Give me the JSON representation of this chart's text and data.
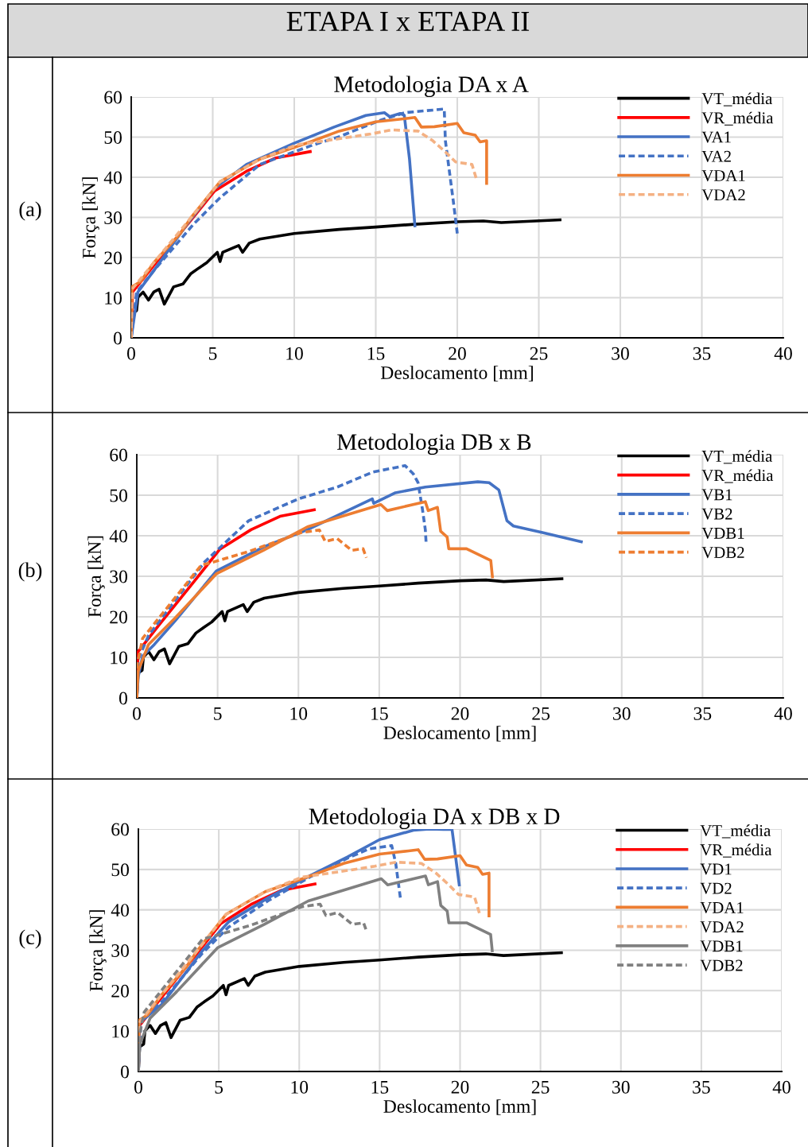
{
  "chart_data": [
    {
      "type": "line",
      "title": "Metodologia DA x A",
      "xlabel": "Deslocamento [mm]",
      "ylabel": "Força [kN]",
      "xlim": [
        0,
        40
      ],
      "ylim": [
        0,
        60
      ],
      "xticks": [
        0,
        5,
        10,
        15,
        20,
        25,
        30,
        35,
        40
      ],
      "yticks": [
        0,
        10,
        20,
        30,
        40,
        50,
        60
      ],
      "grid": true,
      "legend": "top right",
      "annotations": [
        "ETAPA I x ETAPA II",
        "(a)"
      ],
      "series": [
        {
          "name": "VT_média",
          "color": "#000000",
          "line_style": "solid",
          "x": [
            0,
            0.08,
            0.33,
            0.41,
            0.73,
            1.06,
            1.38,
            1.71,
            2.03,
            2.6,
            3.17,
            3.66,
            4.15,
            4.63,
            5.28,
            5.45,
            5.61,
            6.59,
            6.83,
            7.24,
            7.89,
            10.0,
            12.76,
            15.0,
            17.4,
            20.0,
            21.6,
            22.7,
            26.3
          ],
          "values": [
            0,
            6.1,
            6.8,
            10.1,
            11.4,
            9.4,
            11.4,
            12.1,
            8.4,
            12.7,
            13.4,
            16.0,
            17.4,
            18.7,
            21.3,
            19.0,
            21.3,
            23.0,
            21.3,
            23.6,
            24.6,
            26.0,
            27.0,
            27.6,
            28.3,
            28.9,
            29.1,
            28.7,
            29.4
          ]
        },
        {
          "name": "VR_média",
          "color": "#ff0000",
          "line_style": "solid",
          "x": [
            0,
            0.08,
            1.38,
            3.66,
            5.12,
            7.07,
            8.86,
            10.98
          ],
          "values": [
            0,
            11.4,
            18.0,
            29.3,
            36.6,
            41.5,
            44.8,
            46.4
          ]
        },
        {
          "name": "VA1",
          "color": "#4472c4",
          "line_style": "solid",
          "x": [
            0,
            0.41,
            1.38,
            3.66,
            5.12,
            7.07,
            10.0,
            12.44,
            14.39,
            15.53,
            15.85,
            16.5,
            16.75,
            17.07,
            17.4
          ],
          "values": [
            0,
            11.4,
            16.7,
            29.6,
            37.2,
            43.2,
            48.5,
            52.5,
            55.4,
            56.1,
            55.1,
            55.9,
            55.4,
            44.5,
            27.9
          ]
        },
        {
          "name": "VA2",
          "color": "#4472c4",
          "line_style": "dashed",
          "x": [
            0,
            0.33,
            1.38,
            3.82,
            5.45,
            7.89,
            10.98,
            12.76,
            15.2,
            16.8,
            19.2,
            19.27,
            19.76,
            20.0
          ],
          "values": [
            0,
            11.4,
            16.7,
            28.3,
            34.9,
            43.2,
            47.8,
            50.1,
            54.1,
            56.1,
            57.0,
            49.1,
            33.9,
            26.0
          ]
        },
        {
          "name": "VDA1",
          "color": "#ed7d31",
          "line_style": "solid",
          "x": [
            0,
            0.05,
            0.57,
            1.38,
            3.01,
            3.66,
            5.45,
            7.89,
            10.98,
            12.76,
            15.0,
            16.8,
            17.4,
            17.8,
            18.6,
            20.0,
            20.4,
            21.1,
            21.4,
            21.8,
            21.8
          ],
          "values": [
            0,
            12.7,
            14.0,
            18.7,
            26.0,
            29.9,
            38.9,
            44.5,
            48.8,
            51.5,
            53.8,
            54.6,
            54.9,
            52.5,
            52.6,
            53.4,
            51.1,
            50.5,
            48.8,
            49.1,
            38.5
          ]
        },
        {
          "name": "VDA2",
          "color": "#f4b183",
          "line_style": "dashed",
          "x": [
            0,
            0.05,
            1.38,
            3.66,
            5.45,
            7.89,
            10.16,
            12.6,
            14.7,
            16.0,
            17.6,
            18.5,
            19.3,
            19.9,
            20.9,
            21.2
          ],
          "values": [
            0,
            12.1,
            18.7,
            29.9,
            38.9,
            44.5,
            48.1,
            49.5,
            50.8,
            51.8,
            51.5,
            49.1,
            46.2,
            43.8,
            43.2,
            39.2
          ]
        }
      ]
    },
    {
      "type": "line",
      "title": "Metodologia DB x B",
      "xlabel": "Deslocamento [mm]",
      "ylabel": "Força [kN]",
      "xlim": [
        0,
        40
      ],
      "ylim": [
        0,
        60
      ],
      "xticks": [
        0,
        5,
        10,
        15,
        20,
        25,
        30,
        35,
        40
      ],
      "yticks": [
        0,
        10,
        20,
        30,
        40,
        50,
        60
      ],
      "grid": true,
      "legend": "top right",
      "annotations": [
        "(b)"
      ],
      "series": [
        {
          "name": "VT_média",
          "color": "#000000",
          "line_style": "solid",
          "x": [
            0,
            0.08,
            0.33,
            0.41,
            0.73,
            1.06,
            1.38,
            1.71,
            2.03,
            2.6,
            3.17,
            3.66,
            4.15,
            4.63,
            5.28,
            5.45,
            5.61,
            6.59,
            6.83,
            7.24,
            7.89,
            10.0,
            12.76,
            15.0,
            17.4,
            20.0,
            21.6,
            22.7,
            26.3
          ],
          "values": [
            0,
            6.1,
            6.8,
            10.1,
            11.4,
            9.4,
            11.4,
            12.1,
            8.4,
            12.7,
            13.4,
            16.0,
            17.4,
            18.7,
            21.3,
            19.0,
            21.3,
            23.0,
            21.3,
            23.6,
            24.6,
            26.0,
            27.0,
            27.6,
            28.3,
            28.9,
            29.1,
            28.7,
            29.4
          ]
        },
        {
          "name": "VR_média",
          "color": "#ff0000",
          "line_style": "solid",
          "x": [
            0,
            0.08,
            1.38,
            3.66,
            5.12,
            7.07,
            8.86,
            10.98
          ],
          "values": [
            0,
            11.4,
            18.0,
            29.3,
            36.6,
            41.5,
            44.8,
            46.4
          ]
        },
        {
          "name": "VB1",
          "color": "#4472c4",
          "line_style": "solid",
          "x": [
            0,
            0.09,
            0.36,
            1.09,
            2.37,
            4.92,
            7.83,
            10.56,
            14.57,
            14.66,
            16.0,
            17.85,
            21.1,
            21.8,
            22.4,
            22.9,
            23.3,
            25.1,
            27.5
          ],
          "values": [
            0,
            5.2,
            10.3,
            13.2,
            19.0,
            31.3,
            37.2,
            41.5,
            49.1,
            48.0,
            50.6,
            52.0,
            53.3,
            53.1,
            51.3,
            43.7,
            42.4,
            40.8,
            38.5
          ]
        },
        {
          "name": "VB2",
          "color": "#4472c4",
          "line_style": "dashed",
          "x": [
            0,
            0.09,
            0.73,
            4.19,
            6.92,
            10.0,
            12.4,
            14.6,
            16.6,
            17.1,
            17.4,
            17.67,
            17.85,
            17.9
          ],
          "values": [
            0,
            9.6,
            15.4,
            33.5,
            43.7,
            49.1,
            52.0,
            55.7,
            57.3,
            55.3,
            53.1,
            46.6,
            41.5,
            38.2
          ]
        },
        {
          "name": "VDB1",
          "color": "#ed7d31",
          "line_style": "solid",
          "x": [
            0,
            0.09,
            0.73,
            2.37,
            4.92,
            7.83,
            10.56,
            15.1,
            15.5,
            17.85,
            18.03,
            18.6,
            18.8,
            19.2,
            19.3,
            20.4,
            21.9,
            22.0
          ],
          "values": [
            0,
            6.7,
            13.2,
            19.7,
            30.6,
            36.4,
            42.2,
            47.7,
            46.2,
            48.4,
            46.2,
            47.0,
            41.1,
            39.7,
            36.8,
            36.8,
            33.9,
            29.9
          ]
        },
        {
          "name": "VDB2",
          "color": "#ed7d31",
          "line_style": "dashed",
          "x": [
            0,
            0.02,
            0.36,
            4.0,
            4.55,
            6.92,
            10.2,
            11.3,
            11.66,
            12.4,
            13.3,
            14.0,
            14.2
          ],
          "values": [
            0,
            8.1,
            14.7,
            32.8,
            33.3,
            36.1,
            40.8,
            41.4,
            38.6,
            39.3,
            36.4,
            36.8,
            34.6
          ]
        }
      ]
    },
    {
      "type": "line",
      "title": "Metodologia DA x DB x D",
      "xlabel": "Deslocamento [mm]",
      "ylabel": "Força [kN]",
      "xlim": [
        0,
        40
      ],
      "ylim": [
        0,
        60
      ],
      "xticks": [
        0,
        5,
        10,
        15,
        20,
        25,
        30,
        35,
        40
      ],
      "yticks": [
        0,
        10,
        20,
        30,
        40,
        50,
        60
      ],
      "grid": true,
      "legend": "top right",
      "annotations": [
        "(c)"
      ],
      "series": [
        {
          "name": "VT_média",
          "color": "#000000",
          "line_style": "solid",
          "x": [
            0,
            0.08,
            0.33,
            0.41,
            0.73,
            1.06,
            1.38,
            1.71,
            2.03,
            2.6,
            3.17,
            3.66,
            4.15,
            4.63,
            5.28,
            5.45,
            5.61,
            6.59,
            6.83,
            7.24,
            7.89,
            10.0,
            12.76,
            15.0,
            17.4,
            20.0,
            21.6,
            22.7,
            26.3
          ],
          "values": [
            0,
            6.1,
            6.8,
            10.1,
            11.4,
            9.4,
            11.4,
            12.1,
            8.4,
            12.7,
            13.4,
            16.0,
            17.4,
            18.7,
            21.3,
            19.0,
            21.3,
            23.0,
            21.3,
            23.6,
            24.6,
            26.0,
            27.0,
            27.6,
            28.3,
            28.9,
            29.1,
            28.7,
            29.4
          ]
        },
        {
          "name": "VR_média",
          "color": "#ff0000",
          "line_style": "solid",
          "x": [
            0,
            0.08,
            1.38,
            3.66,
            5.12,
            7.07,
            8.86,
            10.98
          ],
          "values": [
            0,
            11.4,
            18.0,
            29.3,
            36.6,
            41.5,
            44.8,
            46.4
          ]
        },
        {
          "name": "VD1",
          "color": "#4472c4",
          "line_style": "solid",
          "x": [
            0,
            0.08,
            1.48,
            3.96,
            5.6,
            8.08,
            10.7,
            13.0,
            15.0,
            17.1,
            18.1,
            18.96,
            19.5,
            19.95
          ],
          "values": [
            0,
            12.1,
            16.7,
            29.8,
            37.0,
            43.0,
            48.5,
            53.1,
            57.4,
            59.7,
            60.0,
            59.9,
            59.9,
            46.2
          ]
        },
        {
          "name": "VD2",
          "color": "#4472c4",
          "line_style": "dashed",
          "x": [
            0,
            0.16,
            1.48,
            3.96,
            5.6,
            8.08,
            10.7,
            13.0,
            14.35,
            15.75,
            16.0,
            16.2,
            16.3
          ],
          "values": [
            0,
            12.8,
            17.4,
            29.2,
            35.7,
            42.3,
            48.2,
            52.8,
            55.1,
            55.9,
            51.5,
            45.6,
            42.6
          ]
        },
        {
          "name": "VDA1",
          "color": "#ed7d31",
          "line_style": "solid",
          "x": [
            0,
            0.05,
            0.57,
            1.38,
            3.01,
            3.66,
            5.45,
            7.89,
            10.98,
            12.76,
            15.0,
            16.8,
            17.4,
            17.8,
            18.6,
            20.0,
            20.4,
            21.1,
            21.4,
            21.8,
            21.8
          ],
          "values": [
            0,
            12.7,
            14.0,
            18.7,
            26.0,
            29.9,
            38.9,
            44.5,
            48.8,
            51.5,
            53.8,
            54.6,
            54.9,
            52.5,
            52.6,
            53.4,
            51.1,
            50.5,
            48.8,
            49.1,
            38.5
          ]
        },
        {
          "name": "VDA2",
          "color": "#f4b183",
          "line_style": "dashed",
          "x": [
            0,
            0.05,
            1.38,
            3.66,
            5.45,
            7.89,
            10.16,
            12.6,
            14.7,
            16.0,
            17.6,
            18.5,
            19.3,
            19.9,
            20.9,
            21.2
          ],
          "values": [
            0,
            12.1,
            18.7,
            29.9,
            38.9,
            44.5,
            48.1,
            49.5,
            50.8,
            51.8,
            51.5,
            49.1,
            46.2,
            43.8,
            43.2,
            39.2
          ]
        },
        {
          "name": "VDB1",
          "color": "#808080",
          "line_style": "solid",
          "x": [
            0,
            0.09,
            0.73,
            2.37,
            4.92,
            7.83,
            10.56,
            15.1,
            15.5,
            17.85,
            18.03,
            18.6,
            18.8,
            19.2,
            19.3,
            20.4,
            21.9,
            22.0
          ],
          "values": [
            0,
            6.7,
            13.2,
            19.7,
            30.6,
            36.4,
            42.2,
            47.7,
            46.2,
            48.4,
            46.2,
            47.0,
            41.1,
            39.7,
            36.8,
            36.8,
            33.9,
            29.9
          ]
        },
        {
          "name": "VDB2",
          "color": "#808080",
          "line_style": "dashed",
          "x": [
            0,
            0.02,
            0.36,
            4.0,
            4.55,
            6.92,
            10.2,
            11.3,
            11.66,
            12.4,
            13.3,
            14.0,
            14.2
          ],
          "values": [
            0,
            8.1,
            14.7,
            32.8,
            33.3,
            36.1,
            40.8,
            41.4,
            38.6,
            39.3,
            36.4,
            36.8,
            34.6
          ]
        }
      ]
    }
  ]
}
